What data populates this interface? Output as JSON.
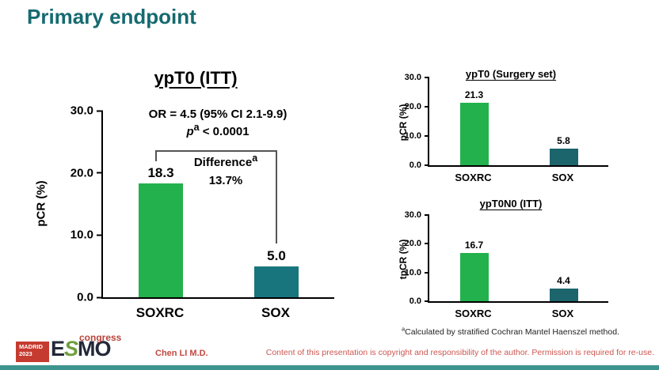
{
  "page": {
    "title": "Primary endpoint",
    "author": "Chen LI M.D.",
    "disclaimer": "Content of this presentation is copyright and responsibility of the author. Permission is required for re-use.",
    "footnote_sup": "a",
    "footnote_text": "Calculated by stratified Cochran Mantel Haenszel method.",
    "logo": {
      "venue": "MADRID",
      "year": "2023",
      "letter_e": "E",
      "letter_s": "S",
      "letter_m": "M",
      "letter_o": "O",
      "event": "congress"
    }
  },
  "colors": {
    "title_teal": "#156a70",
    "bar_green": "#22b14c",
    "bar_teal_main": "#18757d",
    "bar_teal_small": "#1d656c",
    "red_text": "#cd5650",
    "bottom_bar_teal": "#3d948e"
  },
  "chart_data": [
    {
      "id": "ypt0-itt",
      "type": "bar",
      "title": "ypT0 (ITT)",
      "categories": [
        "SOXRC",
        "SOX"
      ],
      "values": [
        18.3,
        5.0
      ],
      "bar_colors": [
        "#22b14c",
        "#18757d"
      ],
      "xlabel": "",
      "ylabel": "pCR (%)",
      "ylim": [
        0,
        30
      ],
      "yticks": [
        0,
        10,
        20,
        30
      ],
      "grid": false,
      "legend": "none",
      "annotations": {
        "or_line": "OR = 4.5 (95% CI 2.1-9.9)",
        "p_prefix": "p",
        "p_sup": "a",
        "p_rest": " < 0.0001",
        "diff_label": "Difference",
        "diff_sup": "a",
        "diff_value": "13.7%"
      }
    },
    {
      "id": "ypt0-surgery",
      "type": "bar",
      "title": "ypT0 (Surgery set)",
      "categories": [
        "SOXRC",
        "SOX"
      ],
      "values": [
        21.3,
        5.8
      ],
      "bar_colors": [
        "#22b14c",
        "#1d656c"
      ],
      "xlabel": "",
      "ylabel": "pCR (%)",
      "ylim": [
        0,
        30
      ],
      "yticks": [
        0,
        10,
        20,
        30
      ],
      "grid": false,
      "legend": "none"
    },
    {
      "id": "ypt0n0-itt",
      "type": "bar",
      "title": "ypT0N0 (ITT)",
      "categories": [
        "SOXRC",
        "SOX"
      ],
      "values": [
        16.7,
        4.4
      ],
      "bar_colors": [
        "#22b14c",
        "#1d656c"
      ],
      "xlabel": "",
      "ylabel": "tpCR (%)",
      "ylim": [
        0,
        30
      ],
      "yticks": [
        0,
        10,
        20,
        30
      ],
      "grid": false,
      "legend": "none"
    }
  ]
}
